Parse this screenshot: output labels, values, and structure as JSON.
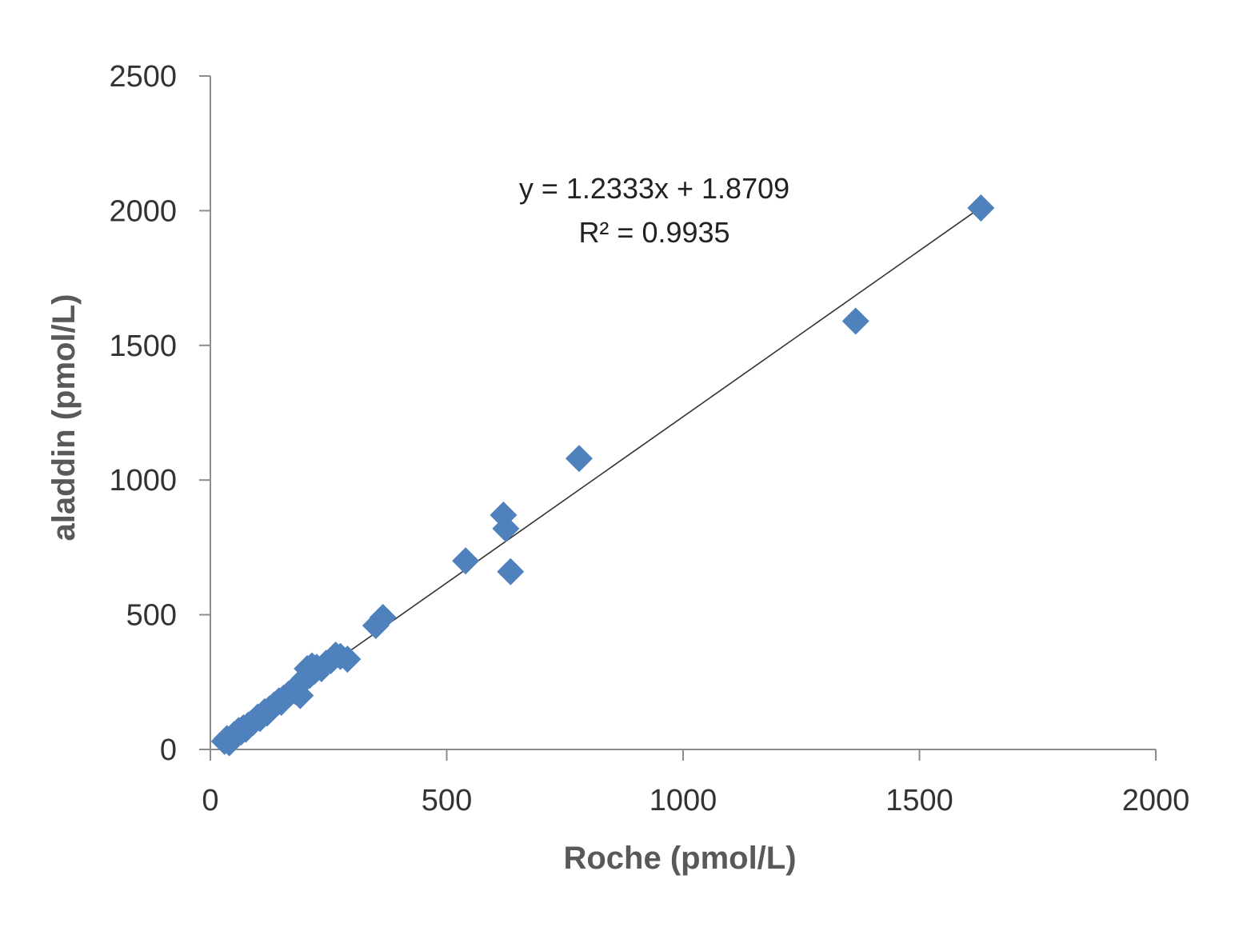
{
  "chart_data": {
    "type": "scatter",
    "title": "",
    "xlabel": "Roche (pmol/L)",
    "ylabel": "aladdin (pmol/L)",
    "xlim": [
      0,
      2000
    ],
    "ylim": [
      0,
      2500
    ],
    "xticks": [
      "0",
      "500",
      "1000",
      "1500",
      "2000"
    ],
    "yticks": [
      "0",
      "500",
      "1000",
      "1500",
      "2000",
      "2500"
    ],
    "grid": false,
    "marker_color": "#4F81BD",
    "marker": "diamond",
    "points": [
      {
        "x": 30,
        "y": 30
      },
      {
        "x": 35,
        "y": 40
      },
      {
        "x": 40,
        "y": 25
      },
      {
        "x": 45,
        "y": 45
      },
      {
        "x": 50,
        "y": 55
      },
      {
        "x": 55,
        "y": 60
      },
      {
        "x": 60,
        "y": 70
      },
      {
        "x": 65,
        "y": 65
      },
      {
        "x": 70,
        "y": 80
      },
      {
        "x": 75,
        "y": 75
      },
      {
        "x": 80,
        "y": 90
      },
      {
        "x": 85,
        "y": 95
      },
      {
        "x": 90,
        "y": 100
      },
      {
        "x": 95,
        "y": 110
      },
      {
        "x": 100,
        "y": 120
      },
      {
        "x": 105,
        "y": 115
      },
      {
        "x": 110,
        "y": 130
      },
      {
        "x": 115,
        "y": 140
      },
      {
        "x": 120,
        "y": 135
      },
      {
        "x": 125,
        "y": 150
      },
      {
        "x": 130,
        "y": 155
      },
      {
        "x": 135,
        "y": 165
      },
      {
        "x": 140,
        "y": 170
      },
      {
        "x": 145,
        "y": 180
      },
      {
        "x": 150,
        "y": 175
      },
      {
        "x": 155,
        "y": 190
      },
      {
        "x": 160,
        "y": 195
      },
      {
        "x": 165,
        "y": 205
      },
      {
        "x": 170,
        "y": 210
      },
      {
        "x": 175,
        "y": 220
      },
      {
        "x": 180,
        "y": 215
      },
      {
        "x": 185,
        "y": 235
      },
      {
        "x": 190,
        "y": 245
      },
      {
        "x": 190,
        "y": 200
      },
      {
        "x": 195,
        "y": 255
      },
      {
        "x": 200,
        "y": 265
      },
      {
        "x": 205,
        "y": 300
      },
      {
        "x": 210,
        "y": 275
      },
      {
        "x": 215,
        "y": 310
      },
      {
        "x": 220,
        "y": 290
      },
      {
        "x": 225,
        "y": 305
      },
      {
        "x": 235,
        "y": 300
      },
      {
        "x": 245,
        "y": 320
      },
      {
        "x": 255,
        "y": 330
      },
      {
        "x": 265,
        "y": 350
      },
      {
        "x": 275,
        "y": 345
      },
      {
        "x": 290,
        "y": 335
      },
      {
        "x": 350,
        "y": 460
      },
      {
        "x": 365,
        "y": 490
      },
      {
        "x": 540,
        "y": 700
      },
      {
        "x": 620,
        "y": 870
      },
      {
        "x": 625,
        "y": 820
      },
      {
        "x": 635,
        "y": 660
      },
      {
        "x": 780,
        "y": 1080
      },
      {
        "x": 1365,
        "y": 1590
      },
      {
        "x": 1630,
        "y": 2010
      }
    ],
    "trendline": {
      "slope": 1.2333,
      "intercept": 1.8709,
      "x_range": [
        35,
        1630
      ],
      "color": "#333333"
    },
    "annotations": {
      "equation": "y = 1.2333x + 1.8709",
      "r2_label": "R² = 0.9935"
    }
  }
}
